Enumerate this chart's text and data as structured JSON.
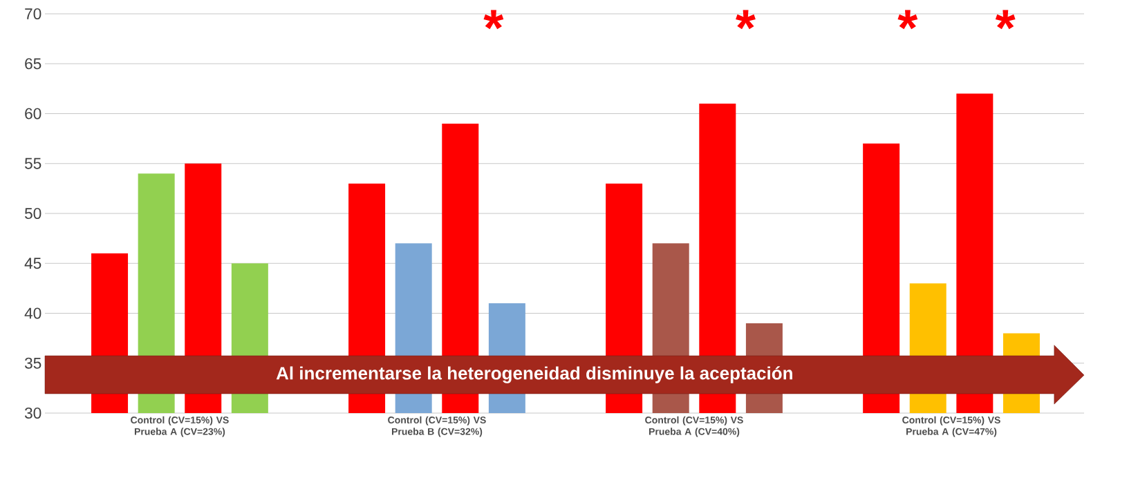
{
  "chart_data": {
    "type": "bar",
    "categories": [
      "Control (CV=15%) VS Prueba A (CV=23%)",
      "Control (CV=15%) VS Prueba B (CV=32%)",
      "Control (CV=15%) VS Prueba A (CV=40%)",
      "Control (CV=15%) VS Prueba A (CV=47%)"
    ],
    "series": [
      {
        "color": "#ff0000",
        "values": [
          46,
          53,
          53,
          57
        ]
      },
      {
        "colors": [
          "#92d050",
          "#7ba7d6",
          "#a9574a",
          "#ffc000"
        ],
        "values": [
          54,
          47,
          47,
          43
        ]
      },
      {
        "color": "#ff0000",
        "values": [
          55,
          59,
          61,
          62
        ]
      },
      {
        "colors": [
          "#92d050",
          "#7ba7d6",
          "#a9574a",
          "#ffc000"
        ],
        "values": [
          45,
          41,
          39,
          38
        ]
      }
    ],
    "ylim": [
      30,
      70
    ],
    "yticks": [
      30,
      35,
      40,
      45,
      50,
      55,
      60,
      65,
      70
    ],
    "grid": "y",
    "annotations": [
      "*",
      "*",
      "*",
      "*",
      "Al incrementarse la heterogeneidad disminuye la aceptación"
    ]
  }
}
